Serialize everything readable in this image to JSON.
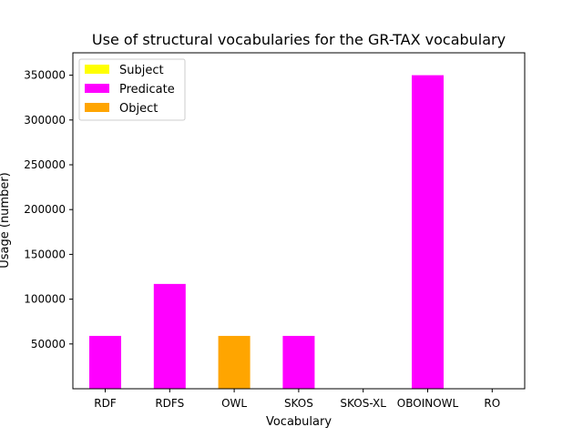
{
  "chart_data": {
    "type": "bar",
    "title": "Use of structural vocabularies for the GR-TAX vocabulary",
    "xlabel": "Vocabulary",
    "ylabel": "Usage (number)",
    "categories": [
      "RDF",
      "RDFS",
      "OWL",
      "SKOS",
      "SKOS-XL",
      "OBOINOWL",
      "RO"
    ],
    "ylim": [
      0,
      375000
    ],
    "yticks": [
      50000,
      100000,
      150000,
      200000,
      250000,
      300000,
      350000
    ],
    "yticklabels": [
      "50000",
      "100000",
      "150000",
      "200000",
      "250000",
      "300000",
      "350000"
    ],
    "series": [
      {
        "name": "Subject",
        "color": "#ffff00",
        "values": [
          0,
          0,
          0,
          0,
          0,
          0,
          0
        ]
      },
      {
        "name": "Predicate",
        "color": "#ff00ff",
        "values": [
          59000,
          117000,
          0,
          59000,
          0,
          350000,
          0
        ]
      },
      {
        "name": "Object",
        "color": "#ffa500",
        "values": [
          0,
          0,
          59000,
          0,
          0,
          0,
          0
        ]
      }
    ],
    "legend_position": "top-left",
    "grid": false
  }
}
